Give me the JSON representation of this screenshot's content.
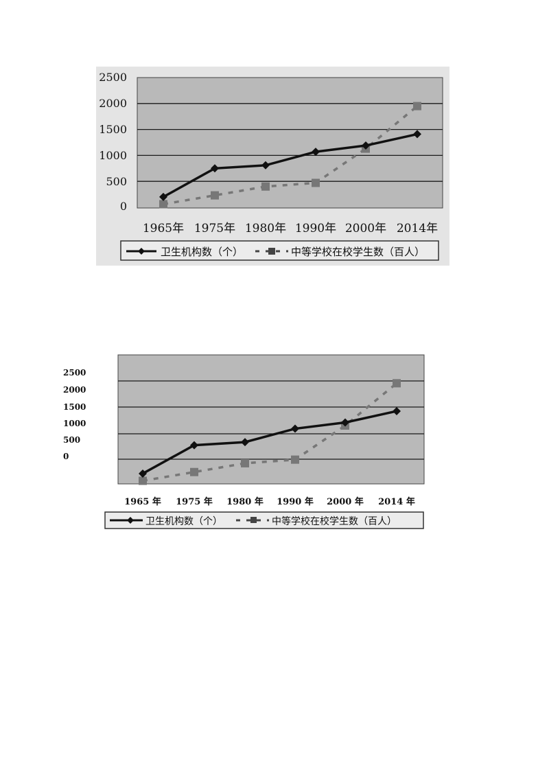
{
  "chart_data": [
    {
      "type": "line",
      "categories": [
        "1965年",
        "1975年",
        "1980年",
        "1990年",
        "2000年",
        "2014年"
      ],
      "ylim": [
        0,
        2500
      ],
      "yticks": [
        "2500",
        "2000",
        "1500",
        "1000",
        "500",
        "0"
      ],
      "grid": true,
      "legend_placement": "bottom",
      "series": [
        {
          "name": "卫生机构数（个）",
          "values": [
            200,
            750,
            810,
            1070,
            1190,
            1410
          ],
          "style": "solid",
          "marker": "diamond",
          "color": "#111111"
        },
        {
          "name": "中等学校在校学生数（百人）",
          "values": [
            60,
            230,
            400,
            470,
            1130,
            1950
          ],
          "style": "dashed",
          "marker": "square",
          "color": "#777777"
        }
      ]
    },
    {
      "type": "line",
      "categories": [
        "1965 年",
        "1975 年",
        "1980 年",
        "1990 年",
        "2000 年",
        "2014 年"
      ],
      "ylim": [
        0,
        2500
      ],
      "yticks": [
        "2500",
        "2000",
        "1500",
        "1000",
        "500",
        "0"
      ],
      "grid": true,
      "legend_placement": "bottom",
      "series": [
        {
          "name": "卫生机构数（个）",
          "values": [
            200,
            750,
            810,
            1070,
            1190,
            1410
          ],
          "style": "solid",
          "marker": "diamond",
          "color": "#111111"
        },
        {
          "name": "中等学校在校学生数（百人）",
          "values": [
            60,
            230,
            400,
            470,
            1130,
            1950
          ],
          "style": "dashed",
          "marker": "square",
          "color": "#777777"
        }
      ]
    }
  ]
}
